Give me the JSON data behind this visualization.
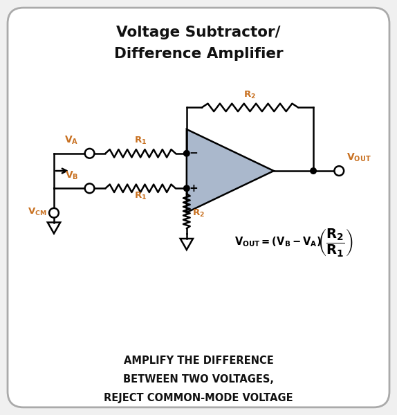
{
  "title_line1": "Voltage Subtractor/",
  "title_line2": "Difference Amplifier",
  "bottom_text_line1": "AMPLIFY THE DIFFERENCE",
  "bottom_text_line2": "BETWEEN TWO VOLTAGES,",
  "bottom_text_line3": "REJECT COMMON-MODE VOLTAGE",
  "bg_color": "#f0f0f0",
  "border_color": "#aaaaaa",
  "opamp_fill": "#aab8cc",
  "line_color": "#000000",
  "title_color": "#111111",
  "bottom_text_color": "#111111",
  "label_color": "#c87020"
}
